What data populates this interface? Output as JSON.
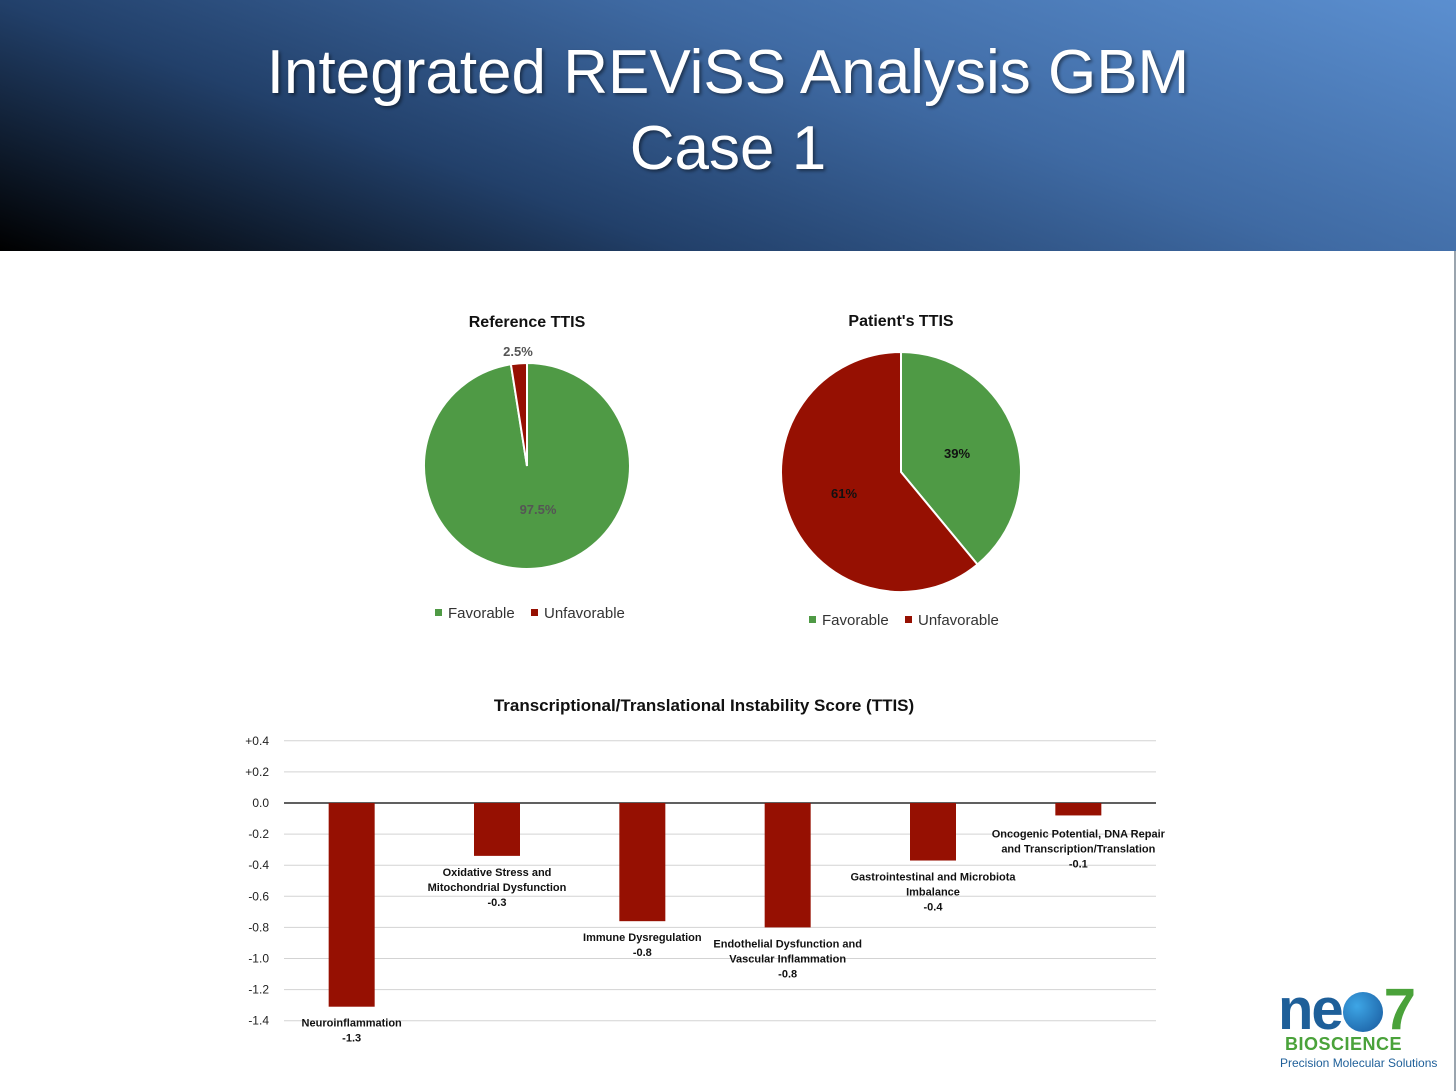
{
  "slide": {
    "title_line1": "Integrated REViSS Analysis GBM",
    "title_line2": "Case 1"
  },
  "colors": {
    "favorable": "#4f9a45",
    "unfavorable": "#961002"
  },
  "logo": {
    "word_a": "ne",
    "word_b": "7",
    "sub": "BIOSCIENCE",
    "tagline": "Precision Molecular Solutions"
  },
  "chart_data": [
    {
      "type": "pie",
      "title": "Reference TTIS",
      "labels": [
        "Favorable",
        "Unfavorable"
      ],
      "values": [
        97.5,
        2.5
      ],
      "data_labels": [
        "97.5%",
        "2.5%"
      ],
      "colors": [
        "#4f9a45",
        "#961002"
      ],
      "legend": "bottom"
    },
    {
      "type": "pie",
      "title": "Patient's TTIS",
      "labels": [
        "Favorable",
        "Unfavorable"
      ],
      "values": [
        39,
        61
      ],
      "data_labels": [
        "39%",
        "61%"
      ],
      "colors": [
        "#4f9a45",
        "#961002"
      ],
      "legend": "bottom"
    },
    {
      "type": "bar",
      "title": "Transcriptional/Translational Instability Score (TTIS)",
      "categories": [
        [
          "Neuroinflammation"
        ],
        [
          "Oxidative Stress and",
          "Mitochondrial Dysfunction"
        ],
        [
          "Immune Dysregulation"
        ],
        [
          "Endothelial Dysfunction and",
          "Vascular Inflammation"
        ],
        [
          "Gastrointestinal and Microbiota",
          "Imbalance"
        ],
        [
          "Oncogenic Potential, DNA Repair",
          "and Transcription/Translation"
        ]
      ],
      "values": [
        -1.31,
        -0.34,
        -0.76,
        -0.8,
        -0.37,
        -0.08
      ],
      "data_labels": [
        "-1.3",
        "-0.3",
        "-0.8",
        "-0.8",
        "-0.4",
        "-0.1"
      ],
      "yticks": [
        "+0.4",
        "+0.2",
        "0.0",
        "-0.2",
        "-0.4",
        "-0.6",
        "-0.8",
        "-1.0",
        "-1.2",
        "-1.4"
      ],
      "ylim": [
        -1.4,
        0.4
      ],
      "grid": true,
      "color": "#961002"
    }
  ]
}
